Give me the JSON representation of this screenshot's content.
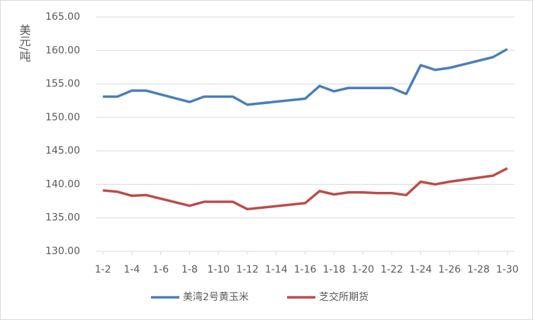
{
  "chart_data": {
    "type": "line",
    "y_label": "美元/吨",
    "x": [
      2,
      3,
      4,
      5,
      8,
      9,
      10,
      11,
      12,
      16,
      17,
      18,
      19,
      20,
      21,
      22,
      23,
      24,
      25,
      26,
      29,
      30
    ],
    "series": [
      {
        "name": "美湾2号黄玉米",
        "color": "#4a7ebb",
        "values": [
          153.1,
          153.1,
          154.0,
          154.0,
          152.3,
          153.1,
          153.1,
          153.1,
          151.9,
          152.8,
          154.7,
          153.9,
          154.4,
          154.4,
          154.4,
          154.4,
          153.5,
          157.8,
          157.1,
          157.4,
          159.0,
          160.2
        ]
      },
      {
        "name": "芝交所期货",
        "color": "#be4b48",
        "values": [
          139.1,
          138.9,
          138.3,
          138.4,
          136.8,
          137.4,
          137.4,
          137.4,
          136.3,
          137.2,
          139.0,
          138.5,
          138.8,
          138.8,
          138.7,
          138.7,
          138.4,
          140.4,
          140.0,
          140.4,
          141.3,
          142.4
        ]
      }
    ],
    "xlim": [
      1.5,
      30.5
    ],
    "xticks": [
      {
        "value": 2,
        "label": "1-2"
      },
      {
        "value": 4,
        "label": "1-4"
      },
      {
        "value": 6,
        "label": "1-6"
      },
      {
        "value": 8,
        "label": "1-8"
      },
      {
        "value": 10,
        "label": "1-10"
      },
      {
        "value": 12,
        "label": "1-12"
      },
      {
        "value": 14,
        "label": "1-14"
      },
      {
        "value": 16,
        "label": "1-16"
      },
      {
        "value": 18,
        "label": "1-18"
      },
      {
        "value": 20,
        "label": "1-20"
      },
      {
        "value": 22,
        "label": "1-22"
      },
      {
        "value": 24,
        "label": "1-24"
      },
      {
        "value": 26,
        "label": "1-26"
      },
      {
        "value": 28,
        "label": "1-28"
      },
      {
        "value": 30,
        "label": "1-30"
      }
    ],
    "ylim": [
      130,
      165
    ],
    "yticks": [
      {
        "value": 130,
        "label": "130.00"
      },
      {
        "value": 135,
        "label": "135.00"
      },
      {
        "value": 140,
        "label": "140.00"
      },
      {
        "value": 145,
        "label": "145.00"
      },
      {
        "value": 150,
        "label": "150.00"
      },
      {
        "value": 155,
        "label": "155.00"
      },
      {
        "value": 160,
        "label": "160.00"
      },
      {
        "value": 165,
        "label": "165.00"
      }
    ],
    "grid": true,
    "legend": "bottom"
  }
}
